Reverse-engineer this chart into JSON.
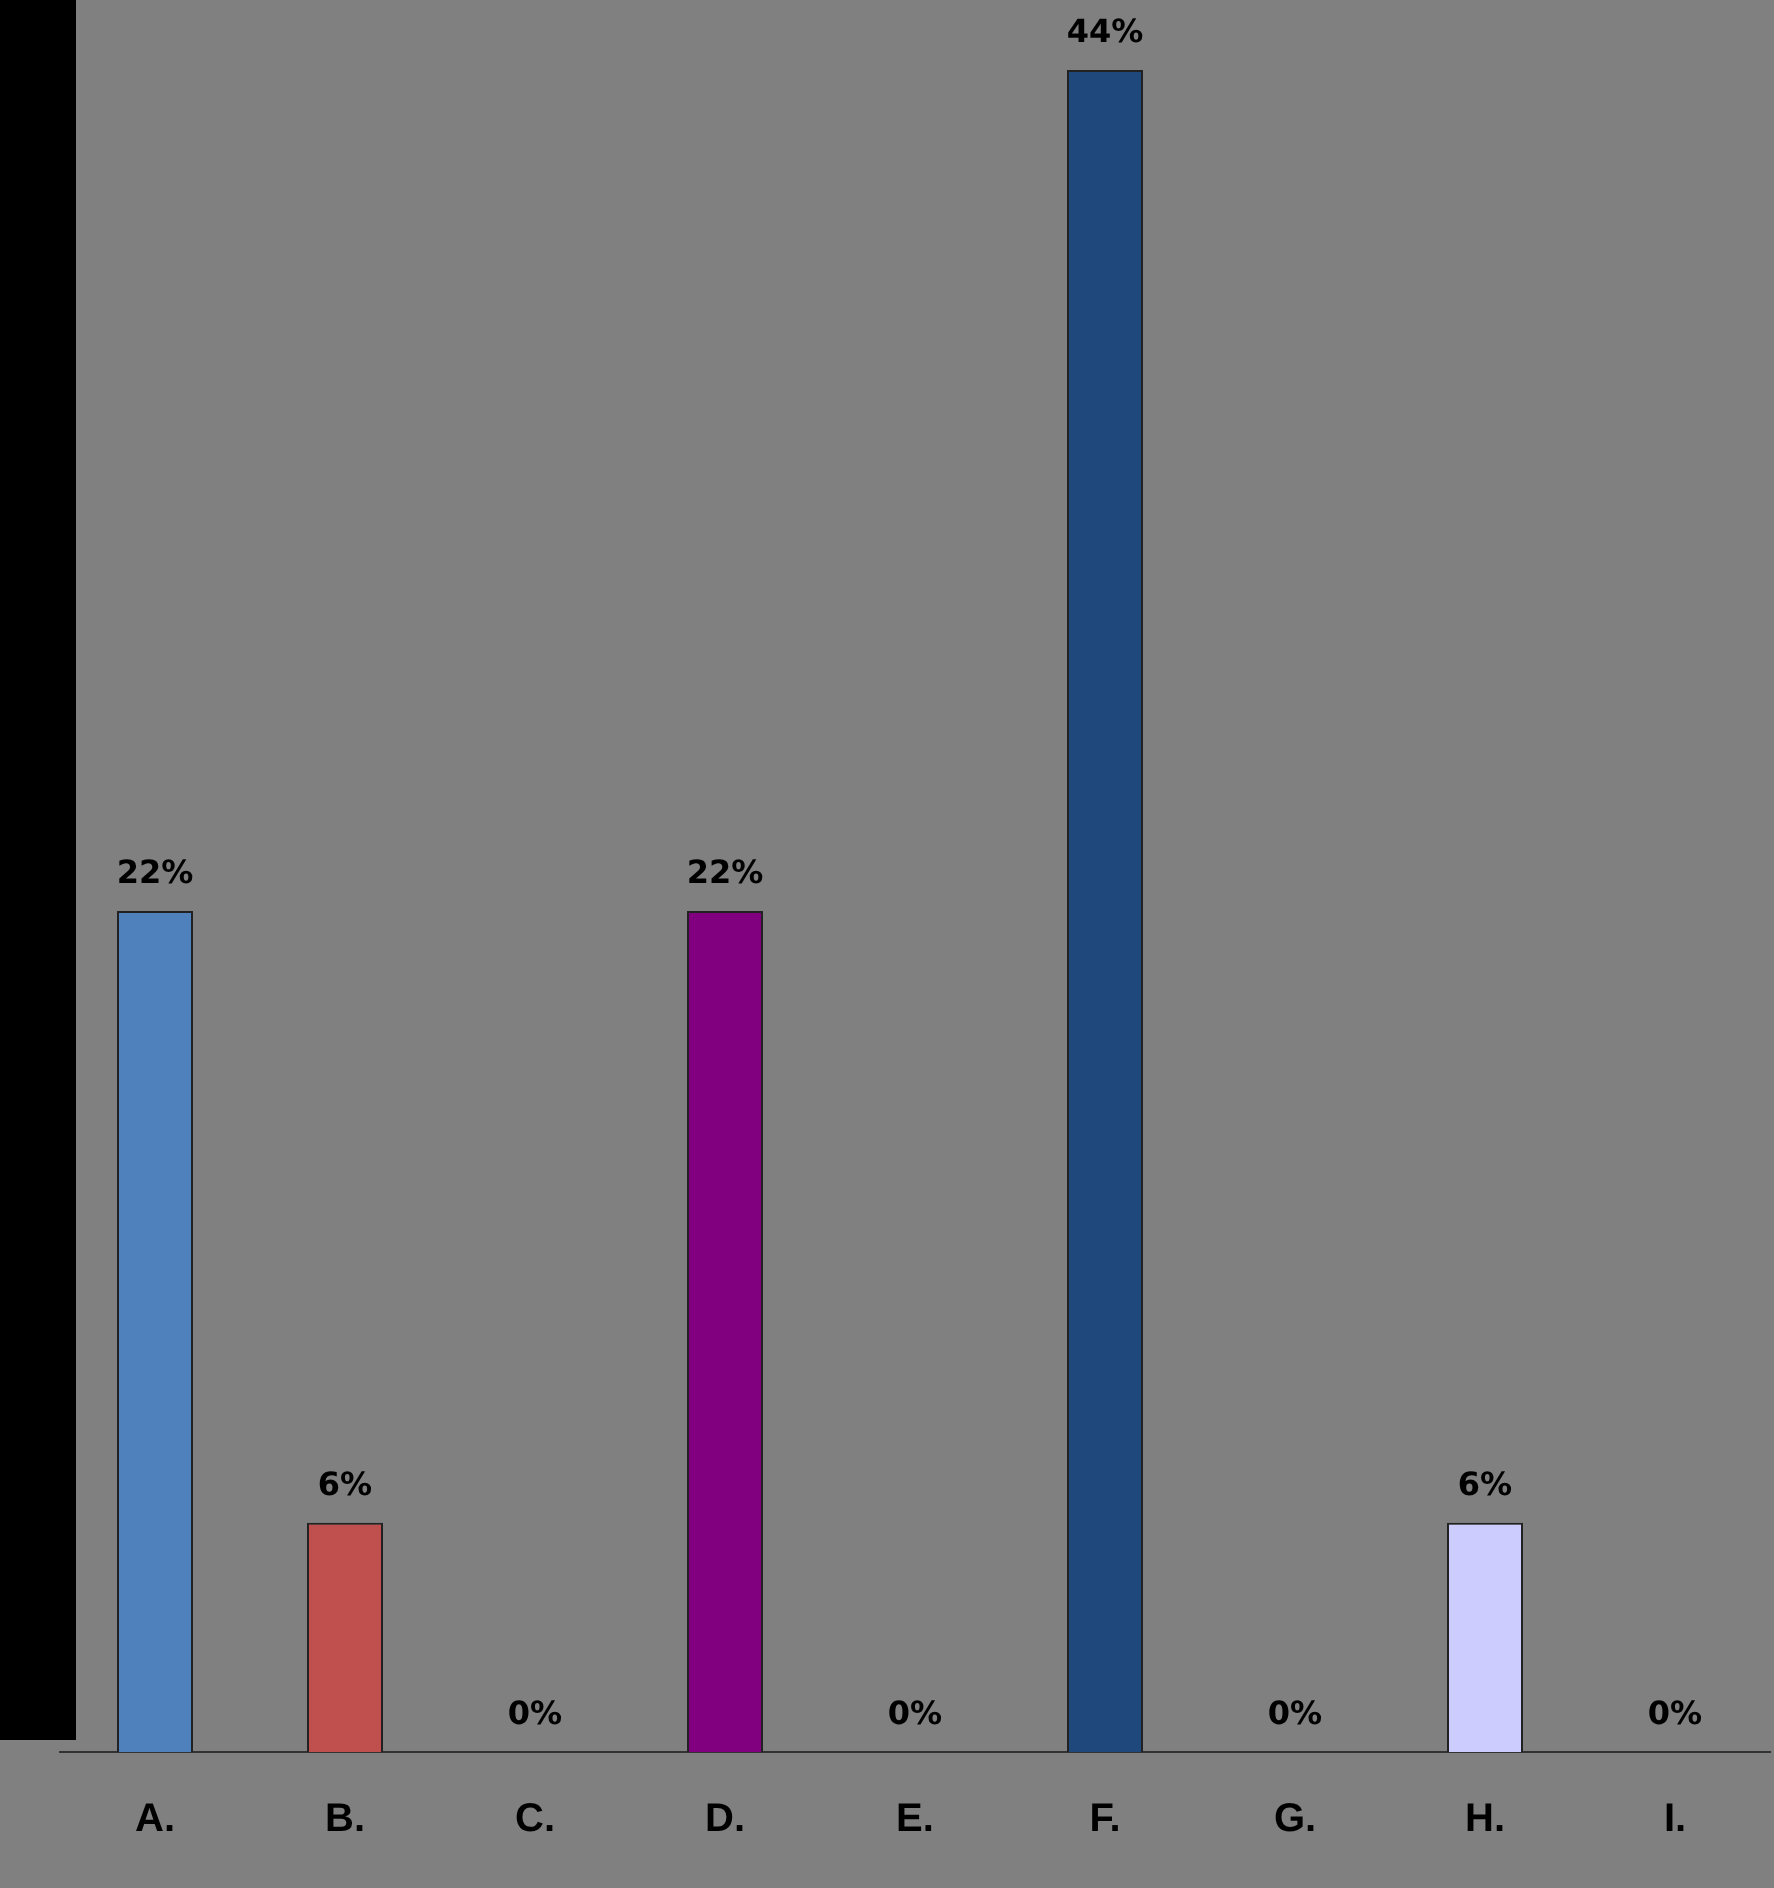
{
  "chart_data": {
    "type": "bar",
    "categories": [
      "A.",
      "B.",
      "C.",
      "D.",
      "E.",
      "F.",
      "G.",
      "H.",
      "I."
    ],
    "values": [
      22,
      6,
      0,
      22,
      0,
      44,
      0,
      6,
      0
    ],
    "value_labels": [
      "22%",
      "6%",
      "0%",
      "22%",
      "0%",
      "44%",
      "0%",
      "6%",
      "0%"
    ],
    "colors": [
      "#4f81bd",
      "#c0504d",
      "#0000cc",
      "#800080",
      "#d9d9d9",
      "#1f497d",
      "#1f5fa8",
      "#ccccff",
      "#cc0000"
    ],
    "grid": false,
    "legend": false
  }
}
